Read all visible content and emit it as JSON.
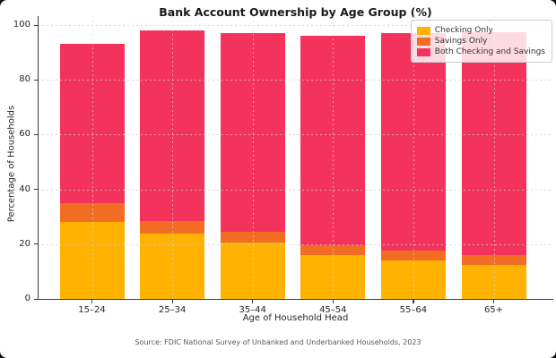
{
  "source_note": "Source: FDIC National Survey of Unbanked and Underbanked Households, 2023",
  "chart_data": {
    "type": "bar",
    "stacked": true,
    "title": "Bank Account Ownership by Age Group (%)",
    "xlabel": "Age of Household Head",
    "ylabel": "Percentage of Households",
    "categories": [
      "15–24",
      "25–34",
      "35–44",
      "45–54",
      "55–64",
      "65+"
    ],
    "series": [
      {
        "name": "Checking Only",
        "color": "#FFB300",
        "values": [
          28.0,
          24.0,
          20.5,
          16.0,
          14.0,
          12.5
        ]
      },
      {
        "name": "Savings Only",
        "color": "#F26D23",
        "values": [
          7.0,
          4.5,
          4.0,
          3.5,
          3.5,
          3.5
        ]
      },
      {
        "name": "Both Checking and Savings",
        "color": "#F4335C",
        "values": [
          58.0,
          69.5,
          72.5,
          76.5,
          79.5,
          81.5
        ]
      }
    ],
    "stack_totals": [
      93.0,
      98.0,
      97.0,
      96.0,
      97.0,
      97.5
    ],
    "yticks": [
      0,
      20,
      40,
      60,
      80,
      100
    ],
    "ylim": [
      0,
      103
    ],
    "grid": true,
    "legend_position": "upper right",
    "axis_color": "#3a3a3a"
  }
}
